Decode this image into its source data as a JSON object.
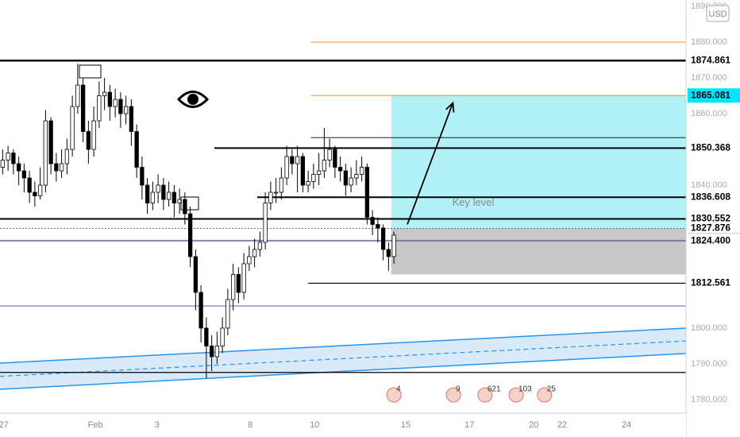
{
  "chart_data": {
    "type": "candlestick",
    "currency": "USD",
    "xlim": [
      0,
      128
    ],
    "ylim": [
      1776.2,
      1891.8
    ],
    "xticks": [
      {
        "value": 0.7,
        "label": "27"
      },
      {
        "value": 17.8,
        "label": "Feb"
      },
      {
        "value": 29.3,
        "label": "3"
      },
      {
        "value": 46.7,
        "label": "8"
      },
      {
        "value": 58.7,
        "label": "10"
      },
      {
        "value": 75.7,
        "label": "15"
      },
      {
        "value": 87.6,
        "label": "17"
      },
      {
        "value": 99.6,
        "label": "20"
      },
      {
        "value": 104.9,
        "label": "22"
      },
      {
        "value": 116.9,
        "label": "24"
      }
    ],
    "yticks": [
      {
        "value": 1890,
        "label": "1890.000"
      },
      {
        "value": 1880,
        "label": "1880.000"
      },
      {
        "value": 1870,
        "label": "1870.000"
      },
      {
        "value": 1860,
        "label": "1860.000"
      },
      {
        "value": 1840,
        "label": "1840.000"
      },
      {
        "value": 1800,
        "label": "1800.000"
      },
      {
        "value": 1790,
        "label": "1790.000"
      },
      {
        "value": 1780,
        "label": "1780.000"
      }
    ],
    "up_color": "#ffffff",
    "down_color": "#000000",
    "open": [
      1845,
      1847,
      1849,
      1846,
      1844,
      1842,
      1838,
      1837,
      1840,
      1858,
      1846,
      1844,
      1846,
      1850,
      1862,
      1868,
      1855,
      1850,
      1858,
      1865,
      1866,
      1862,
      1864,
      1860,
      1862,
      1855,
      1845,
      1840,
      1835,
      1838,
      1840,
      1836,
      1838,
      1835,
      1836,
      1832,
      1820,
      1810,
      1800,
      1795,
      1792,
      1795,
      1800,
      1808,
      1815,
      1810,
      1818,
      1820,
      1822,
      1824,
      1835,
      1838,
      1838,
      1842,
      1848,
      1846,
      1848,
      1840,
      1841,
      1843,
      1844,
      1847,
      1850,
      1845,
      1844,
      1840,
      1842,
      1843,
      1845,
      1831,
      1829,
      1828,
      1822,
      1820
    ],
    "high": [
      1850,
      1851,
      1850,
      1848,
      1846,
      1844,
      1841,
      1845,
      1861,
      1859,
      1849,
      1850,
      1853,
      1865,
      1874,
      1870,
      1858,
      1862,
      1869,
      1870,
      1868,
      1867,
      1866,
      1865,
      1864,
      1857,
      1848,
      1842,
      1841,
      1843,
      1842,
      1841,
      1840,
      1839,
      1838,
      1834,
      1822,
      1812,
      1803,
      1798,
      1799,
      1803,
      1811,
      1818,
      1817,
      1821,
      1823,
      1825,
      1827,
      1838,
      1841,
      1842,
      1845,
      1851,
      1850,
      1851,
      1849,
      1844,
      1846,
      1849,
      1856,
      1853,
      1851,
      1848,
      1846,
      1845,
      1847,
      1848,
      1846,
      1833,
      1831,
      1829,
      1824,
      1827
    ],
    "low": [
      1843,
      1844,
      1843,
      1840,
      1838,
      1835,
      1834,
      1836,
      1838,
      1843,
      1841,
      1842,
      1843,
      1848,
      1860,
      1852,
      1846,
      1848,
      1856,
      1861,
      1858,
      1859,
      1856,
      1857,
      1851,
      1842,
      1836,
      1832,
      1833,
      1835,
      1833,
      1834,
      1831,
      1832,
      1829,
      1817,
      1805,
      1796,
      1786,
      1788,
      1790,
      1793,
      1798,
      1805,
      1807,
      1808,
      1816,
      1817,
      1820,
      1822,
      1833,
      1835,
      1836,
      1840,
      1843,
      1838,
      1838,
      1838,
      1839,
      1840,
      1842,
      1845,
      1842,
      1841,
      1837,
      1838,
      1840,
      1841,
      1829,
      1826,
      1824,
      1819,
      1816,
      1818
    ],
    "close": [
      1847,
      1849,
      1846,
      1844,
      1842,
      1838,
      1837,
      1840,
      1858,
      1846,
      1844,
      1846,
      1850,
      1862,
      1868,
      1855,
      1850,
      1858,
      1865,
      1866,
      1862,
      1864,
      1860,
      1862,
      1855,
      1845,
      1840,
      1835,
      1838,
      1840,
      1836,
      1838,
      1835,
      1836,
      1832,
      1820,
      1810,
      1800,
      1795,
      1792,
      1795,
      1800,
      1808,
      1815,
      1810,
      1818,
      1820,
      1822,
      1824,
      1835,
      1838,
      1838,
      1842,
      1848,
      1846,
      1848,
      1840,
      1841,
      1843,
      1844,
      1847,
      1850,
      1845,
      1844,
      1840,
      1842,
      1843,
      1845,
      1831,
      1829,
      1828,
      1822,
      1820,
      1826
    ],
    "levels": [
      {
        "value": 1880,
        "start": 58,
        "color": "#f57c00",
        "width": 0.8
      },
      {
        "value": 1874.861,
        "start": 0,
        "color": "#000000",
        "width": 2.5,
        "label_bg": "#ffffff"
      },
      {
        "value": 1865.081,
        "start": 58,
        "color": "#f57c00",
        "width": 0.8,
        "label_bg": "#00e5ff"
      },
      {
        "value": 1853.3,
        "start": 58,
        "color": "#000000",
        "width": 0.8
      },
      {
        "value": 1850.368,
        "start": 40,
        "color": "#000000",
        "width": 2,
        "label_bg": "#ffffff"
      },
      {
        "value": 1836.608,
        "start": 48,
        "color": "#000000",
        "width": 2,
        "label_bg": "#ffffff"
      },
      {
        "value": 1830.552,
        "start": 0,
        "color": "#000000",
        "width": 2,
        "label_bg": "#ffffff"
      },
      {
        "value": 1827.876,
        "start": 0,
        "color": "#555555",
        "width": 0.8,
        "dash": true,
        "label_bg": "#ffffff"
      },
      {
        "value": 1824.606,
        "start": 0,
        "color": "#4caf50",
        "width": 0.8,
        "label_bg": "#c8c8c8"
      },
      {
        "value": 1824.4,
        "value_label": "1824.400",
        "start": 0,
        "color": "#5e35b1",
        "width": 0.8,
        "label_bg": "#ffffff"
      },
      {
        "value": 1812.561,
        "start": 57.5,
        "color": "#000000",
        "width": 1.2,
        "label_bg": "#ffffff"
      },
      {
        "value": 1806.2,
        "start": 0,
        "color": "#5e35b1",
        "width": 0.8
      },
      {
        "value": 1787.6,
        "start": 0,
        "color": "#000000",
        "width": 1.2
      }
    ],
    "position": {
      "x_start": 73,
      "x_end": 128,
      "entry": 1827.876,
      "target": 1865.081,
      "stop": 1815,
      "profit_color": "#a8f0f7",
      "loss_color": "#c8c8c8"
    },
    "channel": {
      "color": "#2196f3",
      "fill": "#cfe6f9",
      "upper": [
        [
          0,
          1790.2
        ],
        [
          128,
          1800
        ]
      ],
      "lower": [
        [
          0,
          1782.9
        ],
        [
          128,
          1792.9
        ]
      ],
      "middle": [
        [
          0,
          1786.5
        ],
        [
          128,
          1796.4
        ]
      ]
    },
    "arrow": [
      [
        76,
        1829
      ],
      [
        84.5,
        1863
      ]
    ],
    "annotation": {
      "text": "Key level",
      "x": 88.3,
      "y": 1835
    },
    "events": [
      {
        "x": 73.5,
        "label": "4"
      },
      {
        "x": 84.6,
        "label": "9"
      },
      {
        "x": 90.5,
        "label": "621"
      },
      {
        "x": 96.3,
        "label": "103"
      },
      {
        "x": 101.6,
        "label": "25"
      }
    ]
  }
}
